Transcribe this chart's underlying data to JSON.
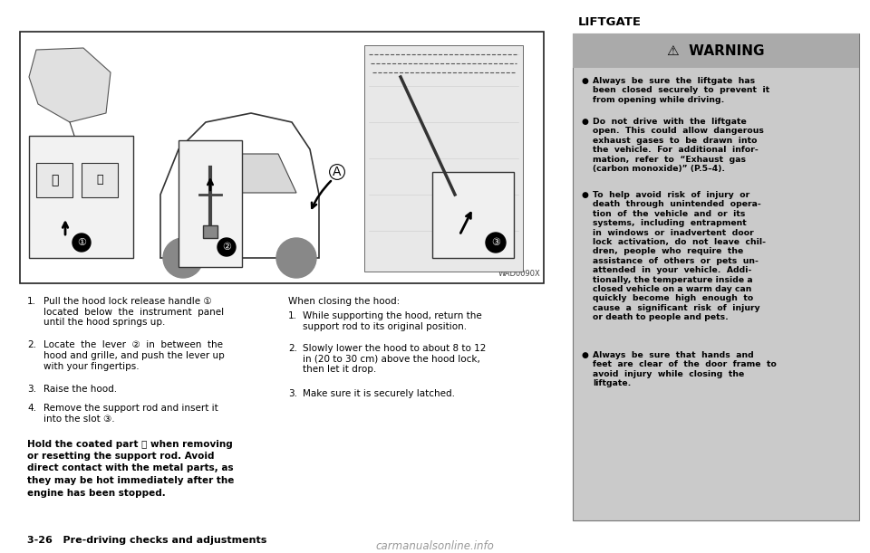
{
  "page_bg": "#ffffff",
  "header_text": "LIFTGATE",
  "header_fontsize": 9.5,
  "diagram_label": "WAD0090X",
  "instructions_left": [
    [
      "1.",
      "Pull the hood lock release handle ①\nlocated  below  the  instrument  panel\nuntil the hood springs up."
    ],
    [
      "2.",
      "Locate  the  lever  ②  in  between  the\nhood and grille, and push the lever up\nwith your fingertips."
    ],
    [
      "3.",
      "Raise the hood."
    ],
    [
      "4.",
      "Remove the support rod and insert it\ninto the slot ③."
    ]
  ],
  "bold_instruction": "Hold the coated part Ⓐ when removing\nor resetting the support rod. Avoid\ndirect contact with the metal parts, as\nthey may be hot immediately after the\nengine has been stopped.",
  "instructions_right_title": "When closing the hood:",
  "instructions_right": [
    [
      "1.",
      "While supporting the hood, return the\nsupport rod to its original position."
    ],
    [
      "2.",
      "Slowly lower the hood to about 8 to 12\nin (20 to 30 cm) above the hood lock,\nthen let it drop."
    ],
    [
      "3.",
      "Make sure it is securely latched."
    ]
  ],
  "footer_text": "3-26   Pre-driving checks and adjustments",
  "footer_fontsize": 8.0,
  "warning_box_bg": "#cacaca",
  "warning_header_bg": "#aaaaaa",
  "warning_title": "WARNING",
  "warning_bullets": [
    "Always  be  sure  the  liftgate  has\nbeen  closed  securely  to  prevent  it\nfrom opening while driving.",
    "Do  not  drive  with  the  liftgate\nopen.  This  could  allow  dangerous\nexhaust  gases  to  be  drawn  into\nthe  vehicle.  For  additional  infor-\nmation,  refer  to  “Exhaust  gas\n(carbon monoxide)” (P.5–4).",
    "To  help  avoid  risk  of  injury  or\ndeath  through  unintended  opera-\ntion  of  the  vehicle  and  or  its\nsystems,  including  entrapment\nin  windows  or  inadvertent  door\nlock  activation,  do  not  leave  chil-\ndren,  people  who  require  the\nassistance  of  others  or  pets  un-\nattended  in  your  vehicle.  Addi-\ntionally, the temperature inside a\nclosed vehicle on a warm day can\nquickly  become  high  enough  to\ncause  a  significant  risk  of  injury\nor death to people and pets.",
    "Always  be  sure  that  hands  and\nfeet  are  clear  of  the  door  frame  to\navoid  injury  while  closing  the\nliftgate."
  ],
  "watermark_text": "carmanualsonline.info",
  "watermark_fontsize": 8.5
}
